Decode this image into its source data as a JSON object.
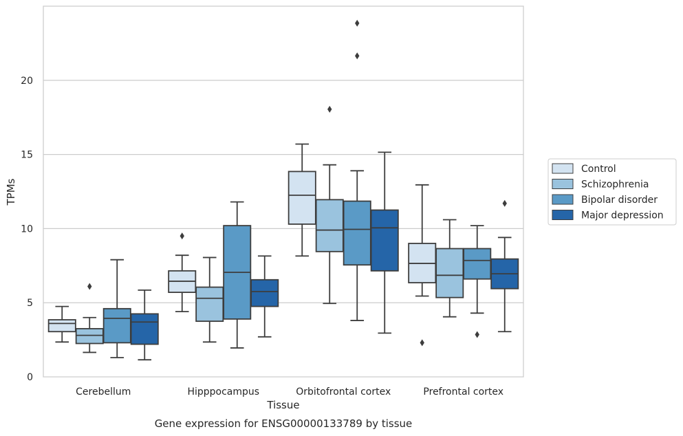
{
  "chart_data": {
    "type": "box",
    "xlabel": "Tissue",
    "ylabel": "TPMs",
    "caption": "Gene expression for ENSG00000133789 by tissue",
    "ylim": [
      0,
      25
    ],
    "yticks": [
      0,
      5,
      10,
      15,
      20
    ],
    "grid": true,
    "legend_position": "right",
    "categories": [
      "Cerebellum",
      "Hipppocampus",
      "Orbitofrontal cortex",
      "Prefrontal cortex"
    ],
    "series": [
      {
        "name": "Control",
        "color": "#d3e3f1",
        "boxes": [
          {
            "whisker_low": 2.35,
            "q1": 3.05,
            "median": 3.6,
            "q3": 3.85,
            "whisker_high": 4.75,
            "outliers": []
          },
          {
            "whisker_low": 4.4,
            "q1": 5.7,
            "median": 6.45,
            "q3": 7.15,
            "whisker_high": 8.2,
            "outliers": [
              9.5
            ]
          },
          {
            "whisker_low": 8.15,
            "q1": 10.3,
            "median": 12.25,
            "q3": 13.85,
            "whisker_high": 15.7,
            "outliers": []
          },
          {
            "whisker_low": 5.45,
            "q1": 6.35,
            "median": 7.65,
            "q3": 9.0,
            "whisker_high": 12.95,
            "outliers": [
              2.3
            ]
          }
        ]
      },
      {
        "name": "Schizophrenia",
        "color": "#9ac3de",
        "boxes": [
          {
            "whisker_low": 1.65,
            "q1": 2.25,
            "median": 2.8,
            "q3": 3.25,
            "whisker_high": 4.0,
            "outliers": [
              6.1
            ]
          },
          {
            "whisker_low": 2.35,
            "q1": 3.75,
            "median": 5.3,
            "q3": 6.05,
            "whisker_high": 8.05,
            "outliers": []
          },
          {
            "whisker_low": 4.95,
            "q1": 8.45,
            "median": 9.9,
            "q3": 11.95,
            "whisker_high": 14.3,
            "outliers": [
              18.05
            ]
          },
          {
            "whisker_low": 4.05,
            "q1": 5.35,
            "median": 6.85,
            "q3": 8.65,
            "whisker_high": 10.6,
            "outliers": []
          }
        ]
      },
      {
        "name": "Bipolar disorder",
        "color": "#5a9ac6",
        "boxes": [
          {
            "whisker_low": 1.3,
            "q1": 2.3,
            "median": 3.95,
            "q3": 4.6,
            "whisker_high": 7.9,
            "outliers": []
          },
          {
            "whisker_low": 1.95,
            "q1": 3.9,
            "median": 7.05,
            "q3": 10.2,
            "whisker_high": 11.8,
            "outliers": []
          },
          {
            "whisker_low": 3.8,
            "q1": 7.55,
            "median": 9.95,
            "q3": 11.85,
            "whisker_high": 13.9,
            "outliers": [
              21.65,
              23.85
            ]
          },
          {
            "whisker_low": 4.3,
            "q1": 6.6,
            "median": 7.85,
            "q3": 8.65,
            "whisker_high": 10.2,
            "outliers": [
              2.85
            ]
          }
        ]
      },
      {
        "name": "Major depression",
        "color": "#2565a8",
        "boxes": [
          {
            "whisker_low": 1.15,
            "q1": 2.2,
            "median": 3.7,
            "q3": 4.25,
            "whisker_high": 5.85,
            "outliers": []
          },
          {
            "whisker_low": 2.7,
            "q1": 4.75,
            "median": 5.75,
            "q3": 6.55,
            "whisker_high": 8.15,
            "outliers": []
          },
          {
            "whisker_low": 2.95,
            "q1": 7.15,
            "median": 10.05,
            "q3": 11.25,
            "whisker_high": 15.15,
            "outliers": []
          },
          {
            "whisker_low": 3.05,
            "q1": 5.95,
            "median": 6.95,
            "q3": 7.95,
            "whisker_high": 9.4,
            "outliers": [
              11.7
            ]
          }
        ]
      }
    ]
  }
}
